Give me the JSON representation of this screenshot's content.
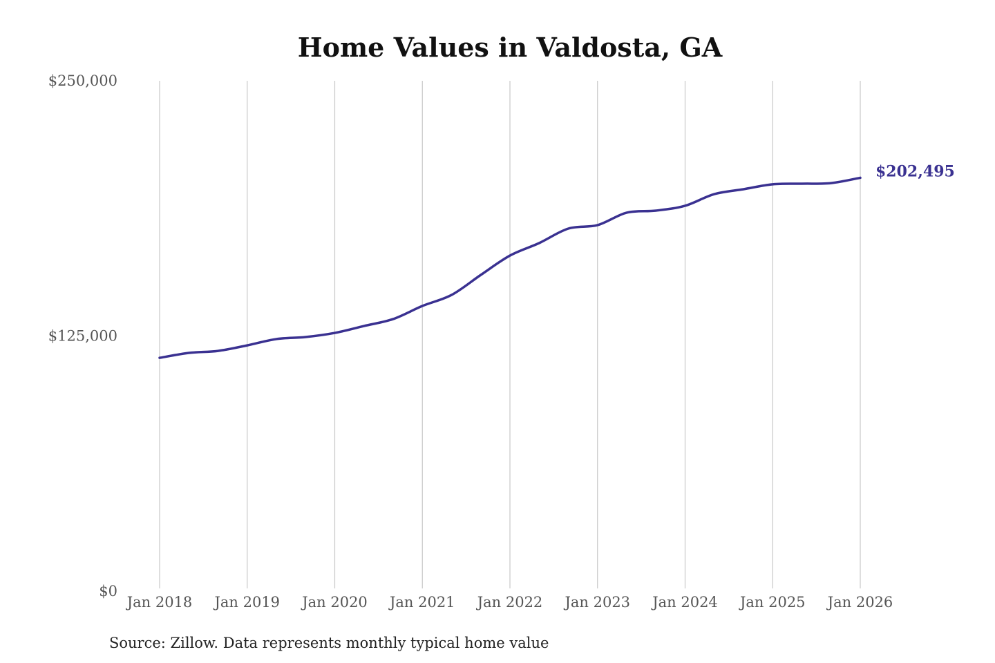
{
  "chart_data": {
    "type": "line",
    "title": "Home Values in Valdosta, GA",
    "source": "Source: Zillow. Data represents monthly typical home value",
    "xlabel": "",
    "ylabel": "",
    "ylim": [
      0,
      250000
    ],
    "y_ticks": [
      0,
      125000,
      250000
    ],
    "y_tick_labels": [
      "$0",
      "$125,000",
      "$250,000"
    ],
    "x_ticks": [
      "2018-01",
      "2019-01",
      "2020-01",
      "2021-01",
      "2022-01",
      "2023-01",
      "2024-01",
      "2025-01",
      "2026-01"
    ],
    "x_tick_labels": [
      "Jan 2018",
      "Jan 2019",
      "Jan 2020",
      "Jan 2021",
      "Jan 2022",
      "Jan 2023",
      "Jan 2024",
      "Jan 2025",
      "Jan 2026"
    ],
    "grid": "vertical",
    "line_color": "#3a3191",
    "end_label": "$202,495",
    "series": [
      {
        "x": [
          "2018-01",
          "2018-05",
          "2018-09",
          "2019-01",
          "2019-05",
          "2019-09",
          "2020-01",
          "2020-05",
          "2020-09",
          "2021-01",
          "2021-05",
          "2021-09",
          "2022-01",
          "2022-05",
          "2022-09",
          "2023-01",
          "2023-05",
          "2023-09",
          "2024-01",
          "2024-05",
          "2024-09",
          "2025-01",
          "2025-05",
          "2025-09",
          "2026-01"
        ],
        "values": [
          114300,
          116700,
          117700,
          120400,
          123500,
          124500,
          126500,
          129900,
          133300,
          139700,
          145100,
          154900,
          164400,
          170500,
          177600,
          179300,
          185400,
          186400,
          188800,
          194500,
          196900,
          199300,
          199600,
          199900,
          202495
        ]
      }
    ]
  }
}
